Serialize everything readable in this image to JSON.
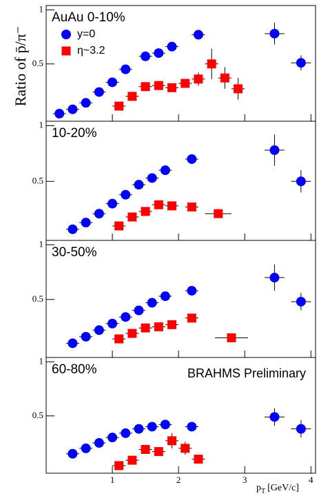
{
  "chart_data": [
    {
      "type": "scatter",
      "title": "AuAu 0-10%",
      "y_label": "Ratio of p̄/π⁻",
      "legend": true,
      "xlim": [
        0,
        4.07
      ],
      "xticks": [
        1,
        2,
        3,
        4
      ],
      "ylim": [
        -0.03,
        1.04
      ],
      "yticks": [
        0.5,
        1
      ],
      "series": [
        {
          "name": "y=0",
          "color": "#0000ff",
          "marker": "circle",
          "x": [
            0.2,
            0.4,
            0.6,
            0.8,
            1.0,
            1.2,
            1.5,
            1.7,
            1.9,
            2.3,
            3.45,
            3.85
          ],
          "values": [
            0.04,
            0.08,
            0.14,
            0.24,
            0.33,
            0.45,
            0.57,
            0.6,
            0.66,
            0.77,
            0.78,
            0.51
          ],
          "errors": [
            0.01,
            0.01,
            0.01,
            0.01,
            0.01,
            0.01,
            0.02,
            0.02,
            0.02,
            0.02,
            0.1,
            0.07
          ],
          "x_errors": [
            0.1,
            0.1,
            0.1,
            0.1,
            0.1,
            0.1,
            0.1,
            0.1,
            0.1,
            0.1,
            0.15,
            0.15
          ]
        },
        {
          "name": "η~3.2",
          "color": "#ff0000",
          "marker": "square",
          "x": [
            1.1,
            1.3,
            1.5,
            1.7,
            1.9,
            2.1,
            2.3,
            2.5,
            2.7,
            2.9
          ],
          "values": [
            0.11,
            0.2,
            0.29,
            0.3,
            0.28,
            0.32,
            0.36,
            0.5,
            0.37,
            0.27
          ],
          "errors": [
            0.02,
            0.02,
            0.02,
            0.03,
            0.03,
            0.04,
            0.06,
            0.14,
            0.1,
            0.1
          ],
          "x_errors": [
            0.1,
            0.1,
            0.1,
            0.1,
            0.1,
            0.1,
            0.1,
            0.1,
            0.1,
            0.1
          ]
        }
      ]
    },
    {
      "type": "scatter",
      "title": "10-20%",
      "xlim": [
        0,
        4.07
      ],
      "xticks": [
        1,
        2,
        3,
        4
      ],
      "ylim": [
        -0.03,
        1.04
      ],
      "yticks": [
        0.5,
        1
      ],
      "series": [
        {
          "color": "#0000ff",
          "marker": "circle",
          "x": [
            0.4,
            0.6,
            0.8,
            1.0,
            1.2,
            1.4,
            1.6,
            1.8,
            2.2,
            3.45,
            3.85
          ],
          "values": [
            0.07,
            0.13,
            0.21,
            0.3,
            0.38,
            0.47,
            0.53,
            0.6,
            0.7,
            0.78,
            0.5
          ],
          "errors": [
            0.01,
            0.01,
            0.01,
            0.01,
            0.01,
            0.01,
            0.02,
            0.02,
            0.02,
            0.14,
            0.1
          ],
          "x_errors": [
            0.1,
            0.1,
            0.1,
            0.1,
            0.1,
            0.1,
            0.1,
            0.1,
            0.1,
            0.15,
            0.15
          ]
        },
        {
          "color": "#ff0000",
          "marker": "square",
          "x": [
            1.1,
            1.3,
            1.5,
            1.7,
            1.9,
            2.2,
            2.6
          ],
          "values": [
            0.1,
            0.18,
            0.23,
            0.29,
            0.28,
            0.27,
            0.21
          ],
          "errors": [
            0.02,
            0.02,
            0.02,
            0.02,
            0.02,
            0.03,
            0.04
          ],
          "x_errors": [
            0.1,
            0.1,
            0.1,
            0.1,
            0.1,
            0.1,
            0.2
          ]
        }
      ]
    },
    {
      "type": "scatter",
      "title": "30-50%",
      "xlim": [
        0,
        4.07
      ],
      "xticks": [
        1,
        2,
        3,
        4
      ],
      "ylim": [
        -0.03,
        1.04
      ],
      "yticks": [
        0.5,
        1
      ],
      "series": [
        {
          "color": "#0000ff",
          "marker": "circle",
          "x": [
            0.4,
            0.6,
            0.8,
            1.0,
            1.2,
            1.4,
            1.6,
            1.8,
            2.2,
            3.45,
            3.85
          ],
          "values": [
            0.1,
            0.16,
            0.22,
            0.28,
            0.34,
            0.4,
            0.47,
            0.53,
            0.58,
            0.7,
            0.48
          ],
          "errors": [
            0.01,
            0.01,
            0.01,
            0.01,
            0.01,
            0.01,
            0.02,
            0.02,
            0.02,
            0.12,
            0.08
          ],
          "x_errors": [
            0.1,
            0.1,
            0.1,
            0.1,
            0.1,
            0.1,
            0.1,
            0.1,
            0.1,
            0.15,
            0.15
          ]
        },
        {
          "color": "#ff0000",
          "marker": "square",
          "x": [
            1.1,
            1.3,
            1.5,
            1.7,
            1.9,
            2.2,
            2.8
          ],
          "values": [
            0.14,
            0.19,
            0.24,
            0.25,
            0.27,
            0.33,
            0.15
          ],
          "errors": [
            0.02,
            0.02,
            0.02,
            0.02,
            0.02,
            0.03,
            0.03
          ],
          "x_errors": [
            0.1,
            0.1,
            0.1,
            0.1,
            0.1,
            0.1,
            0.25
          ]
        }
      ]
    },
    {
      "type": "scatter",
      "title": "60-80%",
      "annotation": "BRAHMS Preliminary",
      "x_label": {
        "symbol": "p",
        "subscript": "T",
        "unit": "[GeV/c]"
      },
      "xlim": [
        0,
        4.07
      ],
      "xticks": [
        1,
        2,
        3,
        4
      ],
      "ylim": [
        -0.03,
        1.04
      ],
      "yticks": [
        0.5,
        1
      ],
      "series": [
        {
          "color": "#0000ff",
          "marker": "circle",
          "x": [
            0.4,
            0.6,
            0.8,
            1.0,
            1.2,
            1.4,
            1.6,
            1.8,
            2.2,
            3.45,
            3.85
          ],
          "values": [
            0.15,
            0.2,
            0.25,
            0.3,
            0.34,
            0.38,
            0.4,
            0.42,
            0.4,
            0.49,
            0.38
          ],
          "errors": [
            0.01,
            0.01,
            0.01,
            0.01,
            0.01,
            0.01,
            0.02,
            0.02,
            0.02,
            0.08,
            0.08
          ],
          "x_errors": [
            0.1,
            0.1,
            0.1,
            0.1,
            0.1,
            0.1,
            0.1,
            0.1,
            0.1,
            0.15,
            0.15
          ]
        },
        {
          "color": "#ff0000",
          "marker": "square",
          "x": [
            1.1,
            1.3,
            1.5,
            1.7,
            1.9,
            2.1,
            2.3
          ],
          "values": [
            0.04,
            0.09,
            0.19,
            0.17,
            0.27,
            0.2,
            0.1
          ],
          "errors": [
            0.02,
            0.02,
            0.03,
            0.04,
            0.07,
            0.06,
            0.04
          ],
          "x_errors": [
            0.1,
            0.1,
            0.1,
            0.1,
            0.1,
            0.1,
            0.1
          ]
        }
      ]
    }
  ]
}
